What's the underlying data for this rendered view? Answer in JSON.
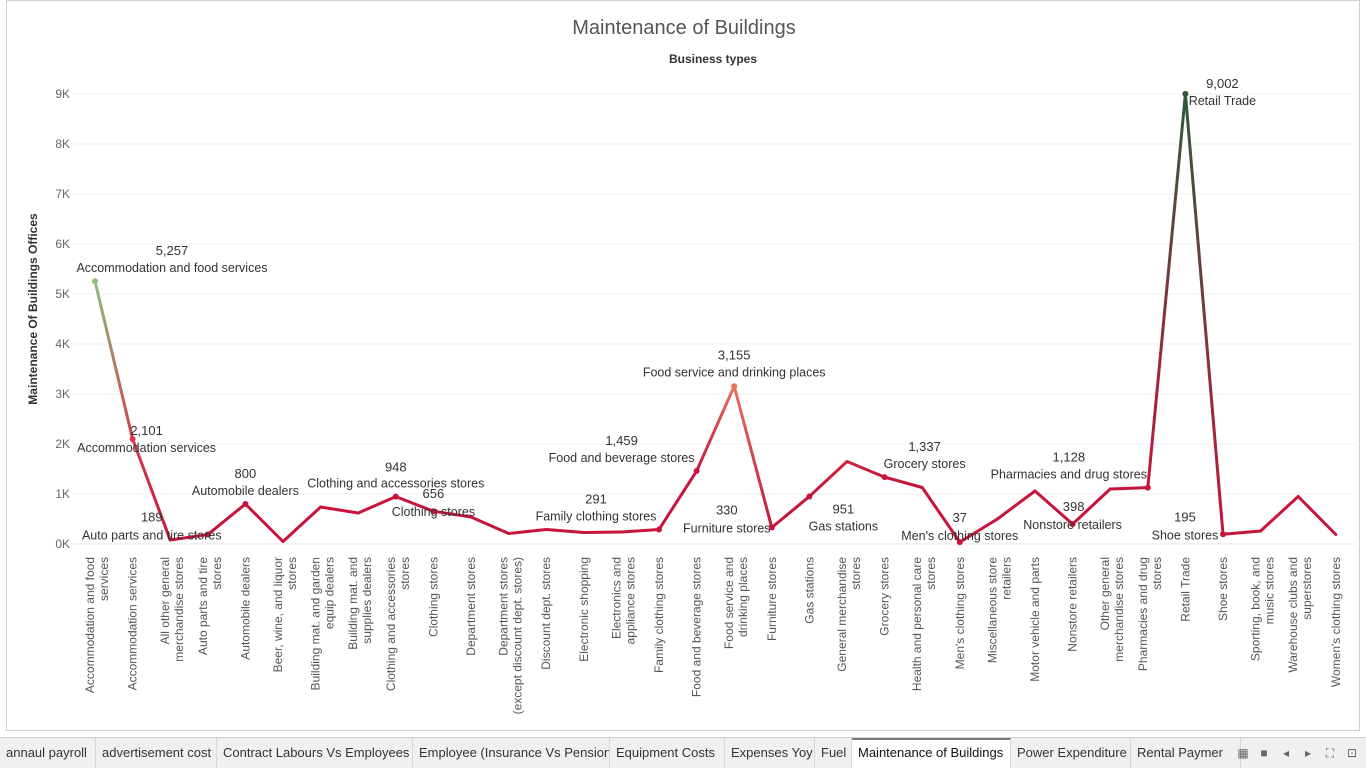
{
  "chart_data": {
    "type": "line",
    "title": "Maintenance of Buildings",
    "xlabel": "Business types",
    "ylabel": "Maintenance Of Buildings Offices",
    "ylim": [
      0,
      9000
    ],
    "yticks": [
      "0K",
      "1K",
      "2K",
      "3K",
      "4K",
      "5K",
      "6K",
      "7K",
      "8K",
      "9K"
    ],
    "categories": [
      "Accommodation and food services",
      "Accommodation services",
      "All other general merchandise stores",
      "Auto parts and tire stores",
      "Automobile dealers",
      "Beer, wine, and liquor stores",
      "Building mat. and garden equip dealers",
      "Building mat. and supplies dealers",
      "Clothing and accessories stores",
      "Clothing stores",
      "Department stores",
      "Department stores (except discount dept. stores)",
      "Discount dept. stores",
      "Electronic shopping",
      "Electronics and appliance stores",
      "Family clothing stores",
      "Food and beverage stores",
      "Food service and drinking places",
      "Furniture stores",
      "Gas stations",
      "General merchandise stores",
      "Grocery stores",
      "Health and personal care stores",
      "Men's clothing stores",
      "Miscellaneous store retailers",
      "Motor vehicle and parts",
      "Nonstore retailers",
      "Other general merchandise stores",
      "Pharmacies and drug stores",
      "Retail Trade",
      "Shoe stores",
      "Sporting, book, and music stores",
      "Warehouse clubs and superstores",
      "Women's clothing stores"
    ],
    "values": [
      5257,
      2101,
      80,
      189,
      800,
      50,
      740,
      620,
      948,
      656,
      540,
      210,
      290,
      230,
      240,
      291,
      1459,
      3155,
      330,
      951,
      1650,
      1337,
      1130,
      37,
      500,
      1060,
      398,
      1100,
      1128,
      9002,
      195,
      260,
      950,
      190
    ],
    "labels": [
      {
        "index": 0,
        "value": "5,257",
        "name": "Accommodation and food services"
      },
      {
        "index": 1,
        "value": "2,101",
        "name": "Accommodation services"
      },
      {
        "index": 3,
        "value": "189",
        "name": "Auto parts and tire stores"
      },
      {
        "index": 4,
        "value": "800",
        "name": "Automobile dealers"
      },
      {
        "index": 8,
        "value": "948",
        "name": "Clothing and accessories stores"
      },
      {
        "index": 9,
        "value": "656",
        "name": "Clothing stores"
      },
      {
        "index": 15,
        "value": "291",
        "name": "Family clothing stores"
      },
      {
        "index": 16,
        "value": "1,459",
        "name": "Food and beverage stores"
      },
      {
        "index": 17,
        "value": "3,155",
        "name": "Food service and drinking places"
      },
      {
        "index": 18,
        "value": "330",
        "name": "Furniture stores"
      },
      {
        "index": 19,
        "value": "951",
        "name": "Gas stations"
      },
      {
        "index": 21,
        "value": "1,337",
        "name": "Grocery stores"
      },
      {
        "index": 23,
        "value": "37",
        "name": "Men's clothing stores"
      },
      {
        "index": 26,
        "value": "398",
        "name": "Nonstore retailers"
      },
      {
        "index": 28,
        "value": "1,128",
        "name": "Pharmacies and drug stores"
      },
      {
        "index": 29,
        "value": "9,002",
        "name": "Retail Trade"
      },
      {
        "index": 30,
        "value": "195",
        "name": "Shoe stores"
      }
    ]
  },
  "colors": {
    "low": "#c8143c",
    "mid": "#e8725e",
    "high_green": "#8dc07a",
    "peak": "#2d5a3a"
  },
  "tabs": [
    {
      "label": "annaul payroll",
      "active": false
    },
    {
      "label": "advertisement cost",
      "active": false
    },
    {
      "label": "Contract Labours Vs Employees",
      "active": false
    },
    {
      "label": "Employee (Insurance Vs Pension)",
      "active": false
    },
    {
      "label": "Equipment Costs",
      "active": false
    },
    {
      "label": "Expenses Yoy",
      "active": false
    },
    {
      "label": "Fuel",
      "active": false
    },
    {
      "label": "Maintenance of Buildings",
      "active": true
    },
    {
      "label": "Power Expenditure",
      "active": false
    },
    {
      "label": "Rental Paymer",
      "active": false
    }
  ],
  "tabbar_icons": [
    "grid-view-icon",
    "sheet-view-icon",
    "prev-arrow-icon",
    "next-arrow-icon",
    "fullscreen-icon",
    "present-icon"
  ]
}
